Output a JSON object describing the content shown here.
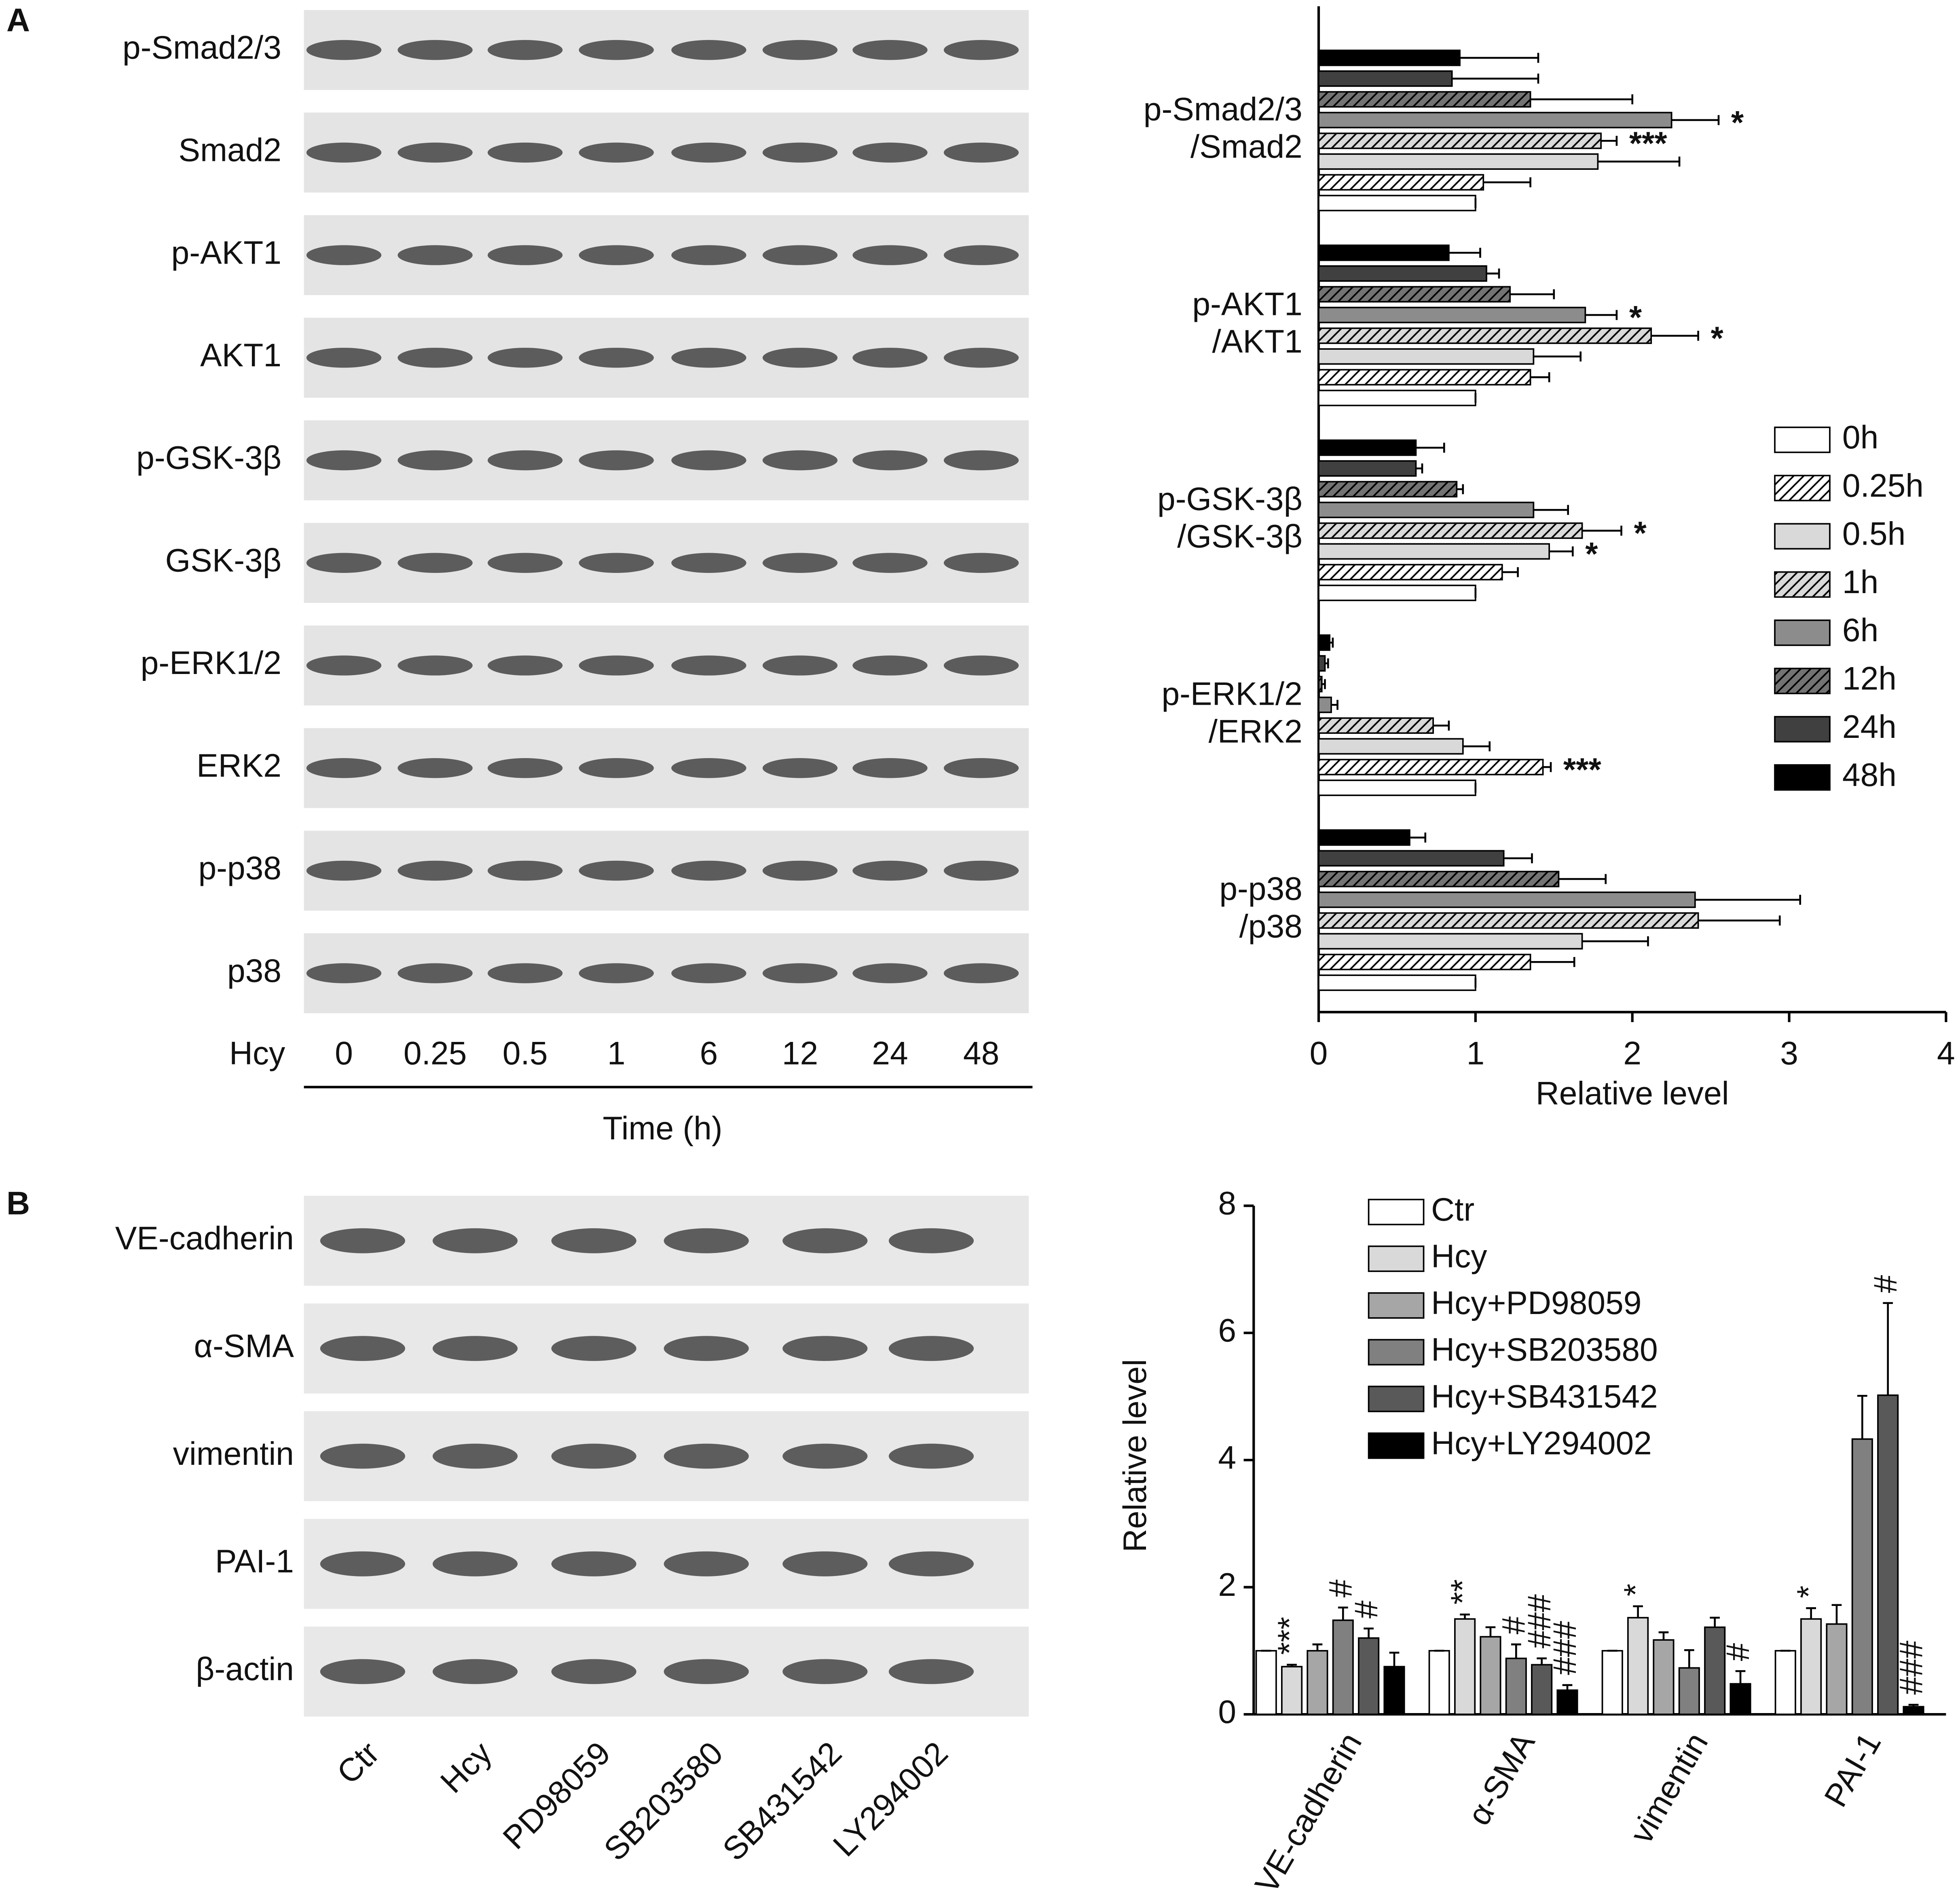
{
  "panels": {
    "a": "A",
    "b": "B"
  },
  "blots_a": {
    "rows": [
      "p-Smad2/3",
      "Smad2",
      "p-AKT1",
      "AKT1",
      "p-GSK-3β",
      "GSK-3β",
      "p-ERK1/2",
      "ERK2",
      "p-p38",
      "p38"
    ],
    "lanes_label": "Hcy",
    "lanes": [
      "0",
      "0.25",
      "0.5",
      "1",
      "6",
      "12",
      "24",
      "48"
    ],
    "axis_label": "Time (h)"
  },
  "blots_b": {
    "rows": [
      "VE-cadherin",
      "α-SMA",
      "vimentin",
      "PAI-1",
      "β-actin"
    ],
    "lanes": [
      "Ctr",
      "Hcy",
      "PD98059",
      "SB203580",
      "SB431542",
      "LY294002"
    ]
  },
  "chart_data": [
    {
      "type": "hbar",
      "xlabel": "Relative level",
      "categories": [
        "p-Smad2/3\n/Smad2",
        "p-AKT1\n/AKT1",
        "p-GSK-3β\n/GSK-3β",
        "p-ERK1/2\n/ERK2",
        "p-p38\n/p38"
      ],
      "xlim": [
        0,
        4
      ],
      "xticks": [
        0,
        1,
        2,
        3,
        4
      ],
      "legend": "right",
      "series": [
        {
          "name": "0h",
          "color": "#ffffff",
          "hatch": false,
          "values": [
            1,
            1,
            1,
            1,
            1
          ],
          "errors": [
            0,
            0,
            0,
            0,
            0
          ],
          "significance": [
            null,
            null,
            null,
            null,
            null
          ]
        },
        {
          "name": "0.25h",
          "color": "#ffffff",
          "hatch": true,
          "values": [
            1.05,
            1.35,
            1.17,
            1.43,
            1.35
          ],
          "errors": [
            0.3,
            0.12,
            0.1,
            0.05,
            0.28
          ],
          "significance": [
            null,
            null,
            null,
            "***",
            null
          ]
        },
        {
          "name": "0.5h",
          "color": "#d9d9d9",
          "hatch": false,
          "values": [
            1.78,
            1.37,
            1.47,
            0.92,
            1.68
          ],
          "errors": [
            0.52,
            0.3,
            0.15,
            0.17,
            0.42
          ],
          "significance": [
            null,
            null,
            "*",
            null,
            null
          ]
        },
        {
          "name": "1h",
          "color": "#d9d9d9",
          "hatch": true,
          "values": [
            1.8,
            2.12,
            1.68,
            0.73,
            2.42
          ],
          "errors": [
            0.1,
            0.3,
            0.25,
            0.1,
            0.52
          ],
          "significance": [
            "***",
            "*",
            "*",
            null,
            null
          ]
        },
        {
          "name": "6h",
          "color": "#8c8c8c",
          "hatch": false,
          "values": [
            2.25,
            1.7,
            1.37,
            0.08,
            2.4
          ],
          "errors": [
            0.3,
            0.2,
            0.22,
            0.04,
            0.67
          ],
          "significance": [
            "*",
            "*",
            null,
            null,
            null
          ]
        },
        {
          "name": "12h",
          "color": "#737373",
          "hatch": true,
          "values": [
            1.35,
            1.22,
            0.88,
            0.02,
            1.53
          ],
          "errors": [
            0.65,
            0.28,
            0.04,
            0.02,
            0.3
          ],
          "significance": [
            null,
            null,
            null,
            null,
            null
          ]
        },
        {
          "name": "24h",
          "color": "#404040",
          "hatch": false,
          "values": [
            0.85,
            1.07,
            0.62,
            0.04,
            1.18
          ],
          "errors": [
            0.55,
            0.08,
            0.04,
            0.02,
            0.18
          ],
          "significance": [
            null,
            null,
            null,
            null,
            null
          ]
        },
        {
          "name": "48h",
          "color": "#000000",
          "hatch": false,
          "values": [
            0.9,
            0.83,
            0.62,
            0.07,
            0.58
          ],
          "errors": [
            0.5,
            0.2,
            0.18,
            0.02,
            0.1
          ],
          "significance": [
            null,
            null,
            null,
            null,
            null
          ]
        }
      ]
    },
    {
      "type": "bar",
      "ylabel": "Relative level",
      "categories": [
        "VE-cadherin",
        "α-SMA",
        "vimentin",
        "PAI-1"
      ],
      "ylim": [
        0,
        8
      ],
      "yticks": [
        0,
        2,
        4,
        6,
        8
      ],
      "legend": "upper left",
      "series": [
        {
          "name": "Ctr",
          "color": "#ffffff",
          "values": [
            1,
            1,
            1,
            1
          ],
          "errors": [
            0,
            0,
            0,
            0
          ],
          "significance": [
            null,
            null,
            null,
            null
          ]
        },
        {
          "name": "Hcy",
          "color": "#d9d9d9",
          "values": [
            0.75,
            1.5,
            1.52,
            1.5
          ],
          "errors": [
            0.03,
            0.07,
            0.18,
            0.17
          ],
          "significance": [
            "***",
            "**",
            "*",
            "*"
          ]
        },
        {
          "name": "Hcy+PD98059",
          "color": "#a6a6a6",
          "values": [
            1,
            1.22,
            1.17,
            1.42
          ],
          "errors": [
            0.1,
            0.15,
            0.12,
            0.3
          ],
          "significance": [
            null,
            null,
            null,
            null
          ]
        },
        {
          "name": "Hcy+SB203580",
          "color": "#808080",
          "values": [
            1.48,
            0.88,
            0.73,
            4.33
          ],
          "errors": [
            0.2,
            0.22,
            0.28,
            0.68
          ],
          "significance": [
            "#",
            "#",
            null,
            null
          ]
        },
        {
          "name": "Hcy+SB431542",
          "color": "#595959",
          "values": [
            1.2,
            0.78,
            1.37,
            5.02
          ],
          "errors": [
            0.15,
            0.1,
            0.15,
            1.45
          ],
          "significance": [
            "#",
            "###",
            null,
            "#"
          ]
        },
        {
          "name": "Hcy+LY294002",
          "color": "#000000",
          "values": [
            0.75,
            0.38,
            0.48,
            0.12
          ],
          "errors": [
            0.22,
            0.08,
            0.2,
            0.03
          ],
          "significance": [
            null,
            "###",
            "#",
            "###"
          ]
        }
      ]
    }
  ]
}
